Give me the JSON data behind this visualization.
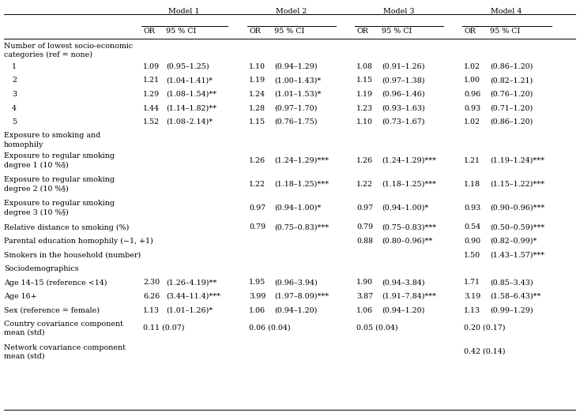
{
  "rows": [
    {
      "label": "Number of lowest socio-economic\ncategories (ref = none)",
      "type": "section",
      "data": [
        "",
        "",
        "",
        "",
        "",
        "",
        "",
        ""
      ]
    },
    {
      "label": "1",
      "type": "data",
      "indent": true,
      "data": [
        "1.09",
        "(0.95–1.25)",
        "1.10",
        "(0.94–1.29)",
        "1.08",
        "(0.91–1.26)",
        "1.02",
        "(0.86–1.20)"
      ]
    },
    {
      "label": "2",
      "type": "data",
      "indent": true,
      "data": [
        "1.21",
        "(1.04–1.41)*",
        "1.19",
        "(1.00–1.43)*",
        "1.15",
        "(0.97–1.38)",
        "1.00",
        "(0.82–1.21)"
      ]
    },
    {
      "label": "3",
      "type": "data",
      "indent": true,
      "data": [
        "1.29",
        "(1.08–1.54)**",
        "1.24",
        "(1.01–1.53)*",
        "1.19",
        "(0.96–1.46)",
        "0.96",
        "(0.76–1.20)"
      ]
    },
    {
      "label": "4",
      "type": "data",
      "indent": true,
      "data": [
        "1.44",
        "(1.14–1.82)**",
        "1.28",
        "(0.97–1.70)",
        "1.23",
        "(0.93–1.63)",
        "0.93",
        "(0.71–1.20)"
      ]
    },
    {
      "label": "5",
      "type": "data",
      "indent": true,
      "data": [
        "1.52",
        "(1.08–2.14)*",
        "1.15",
        "(0.76–1.75)",
        "1.10",
        "(0.73–1.67)",
        "1.02",
        "(0.86–1.20)"
      ]
    },
    {
      "label": "Exposure to smoking and\nhomophily",
      "type": "section",
      "data": [
        "",
        "",
        "",
        "",
        "",
        "",
        "",
        ""
      ]
    },
    {
      "label": "Exposure to regular smoking\ndegree 1 (10 %§)",
      "type": "data",
      "indent": false,
      "data": [
        "",
        "",
        "1.26",
        "(1.24–1.29)***",
        "1.26",
        "(1.24–1.29)***",
        "1.21",
        "(1.19–1.24)***"
      ]
    },
    {
      "label": "Exposure to regular smoking\ndegree 2 (10 %§)",
      "type": "data",
      "indent": false,
      "data": [
        "",
        "",
        "1.22",
        "(1.18–1.25)***",
        "1.22",
        "(1.18–1.25)***",
        "1.18",
        "(1.15–1.22)***"
      ]
    },
    {
      "label": "Exposure to regular smoking\ndegree 3 (10 %§)",
      "type": "data",
      "indent": false,
      "data": [
        "",
        "",
        "0.97",
        "(0.94–1.00)*",
        "0.97",
        "(0.94–1.00)*",
        "0.93",
        "(0.90–0.96)***"
      ]
    },
    {
      "label": "Relative distance to smoking (%)",
      "type": "data",
      "indent": false,
      "data": [
        "",
        "",
        "0.79",
        "(0.75–0.83)***",
        "0.79",
        "(0.75–0.83)***",
        "0.54",
        "(0.50–0.59)***"
      ]
    },
    {
      "label": "Parental education homophily (−1, +1)",
      "type": "data",
      "indent": false,
      "data": [
        "",
        "",
        "",
        "",
        "0.88",
        "(0.80–0.96)**",
        "0.90",
        "(0.82–0.99)*"
      ]
    },
    {
      "label": "Smokers in the household (number)",
      "type": "data",
      "indent": false,
      "data": [
        "",
        "",
        "",
        "",
        "",
        "",
        "1.50",
        "(1.43–1.57)***"
      ]
    },
    {
      "label": "Sociodemographics",
      "type": "section",
      "data": [
        "",
        "",
        "",
        "",
        "",
        "",
        "",
        ""
      ]
    },
    {
      "label": "Age 14–15 (reference <14)",
      "type": "data",
      "indent": false,
      "data": [
        "2.30",
        "(1.26–4.19)**",
        "1.95",
        "(0.96–3.94)",
        "1.90",
        "(0.94–3.84)",
        "1.71",
        "(0.85–3.43)"
      ]
    },
    {
      "label": "Age 16+",
      "type": "data",
      "indent": false,
      "data": [
        "6.26",
        "(3.44–11.4)***",
        "3.99",
        "(1.97–8.09)***",
        "3.87",
        "(1.91–7.84)***",
        "3.19",
        "(1.58–6.43)**"
      ]
    },
    {
      "label": "Sex (reference = female)",
      "type": "data",
      "indent": false,
      "data": [
        "1.13",
        "(1.01–1.26)*",
        "1.06",
        "(0.94–1.20)",
        "1.06",
        "(0.94–1.20)",
        "1.13",
        "(0.99–1.29)"
      ]
    },
    {
      "label": "Country covariance component\nmean (std)",
      "type": "combined",
      "indent": false,
      "data": [
        "0.11 (0.07)",
        "0.06 (0.04)",
        "0.05 (0.04)",
        "0.20 (0.17)"
      ]
    },
    {
      "label": "Network covariance component\nmean (std)",
      "type": "combined",
      "indent": false,
      "data": [
        "",
        "",
        "",
        "0.42 (0.14)"
      ]
    }
  ],
  "font_size": 6.8,
  "bg_color": "#ffffff"
}
